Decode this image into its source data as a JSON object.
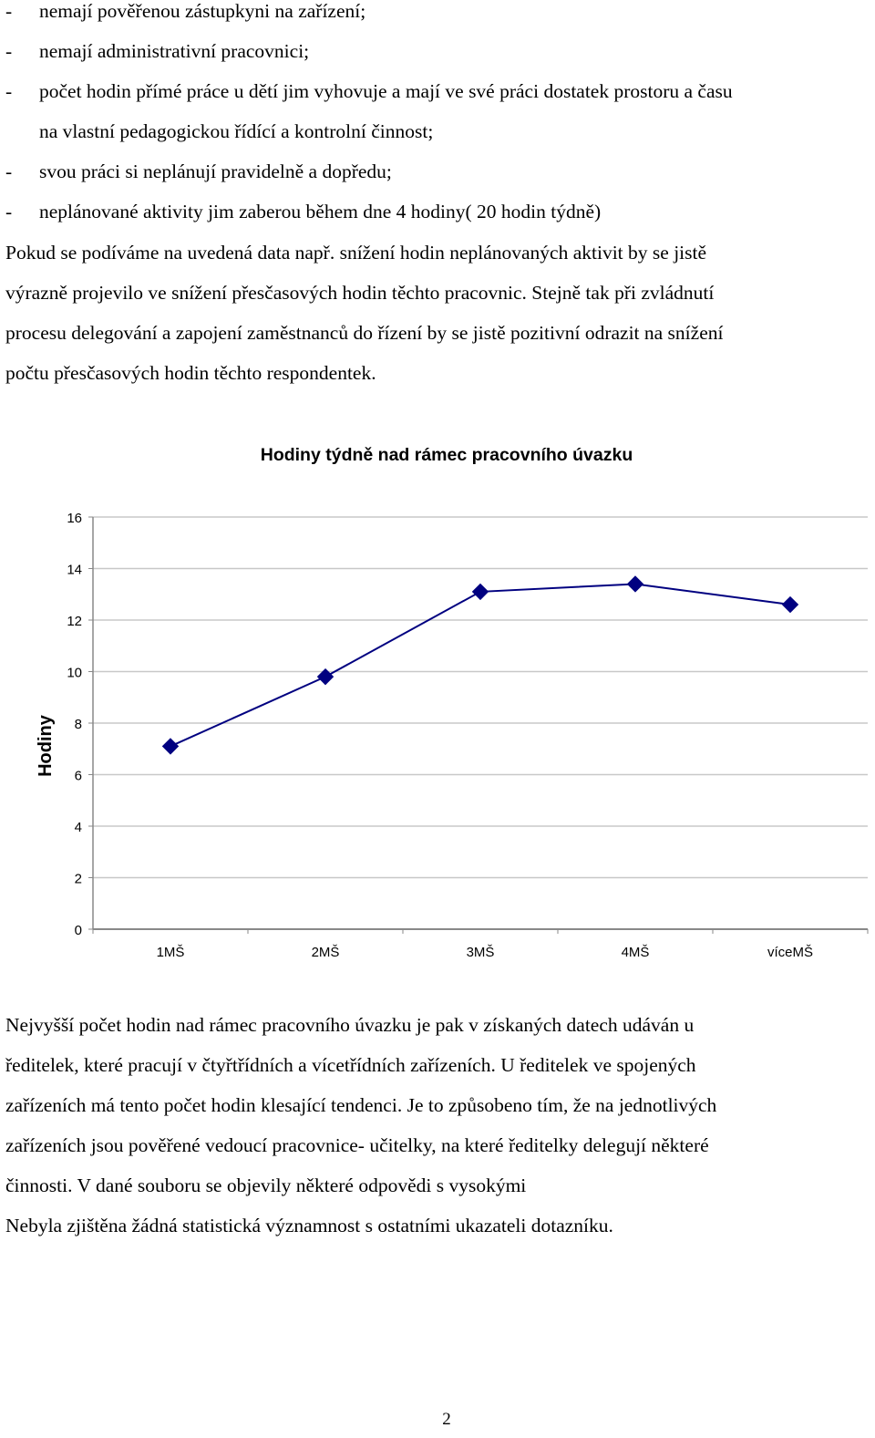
{
  "bullets": [
    "nemají pověřenou zástupkyni na zařízení;",
    "nemají administrativní pracovnici;",
    "počet hodin přímé práce u dětí jim vyhovuje a mají ve své práci dostatek prostoru a času",
    "na vlastní pedagogickou řídící a kontrolní činnost;",
    "svou práci si neplánují pravidelně a dopředu;",
    "neplánované aktivity jim zaberou během dne 4 hodiny( 20 hodin týdně)"
  ],
  "bullet_dash": "-",
  "paragraph1": [
    "Pokud se podíváme na uvedená data např. snížení hodin neplánovaných aktivit  by se jistě",
    "výrazně projevilo ve snížení přesčasových hodin těchto pracovnic. Stejně tak při zvládnutí",
    "procesu delegování a zapojení zaměstnanců do řízení by se jistě pozitivní odrazit na snížení",
    "počtu přesčasových hodin těchto respondentek."
  ],
  "chart_data": {
    "type": "line",
    "title": "Hodiny týdně nad rámec pracovního úvazku",
    "xlabel": "",
    "ylabel": "Hodiny",
    "categories": [
      "1MŠ",
      "2MŠ",
      "3MŠ",
      "4MŠ",
      "víceMŠ"
    ],
    "values": [
      7.1,
      9.8,
      13.1,
      13.4,
      12.6
    ],
    "ylim": [
      0,
      16
    ],
    "yticks": [
      "0",
      "2",
      "4",
      "6",
      "8",
      "10",
      "12",
      "14",
      "16"
    ],
    "grid": true,
    "legend": "none",
    "line_color": "#000080",
    "marker": "diamond"
  },
  "paragraph2": [
    "Nejvyšší počet hodin nad rámec pracovního úvazku je pak v získaných datech udáván u",
    "ředitelek, které pracují v čtyřtřídních  a vícetřídních zařízeních. U ředitelek  ve spojených",
    "zařízeních má tento počet hodin klesající tendenci. Je to způsobeno tím, že na jednotlivých",
    "zařízeních jsou pověřené vedoucí pracovnice- učitelky, na které ředitelky delegují některé",
    "činnosti. V dané souboru se objevily některé odpovědi s vysokými",
    "Nebyla zjištěna žádná statistická významnost s ostatními ukazateli dotazníku."
  ],
  "page_number": "2"
}
